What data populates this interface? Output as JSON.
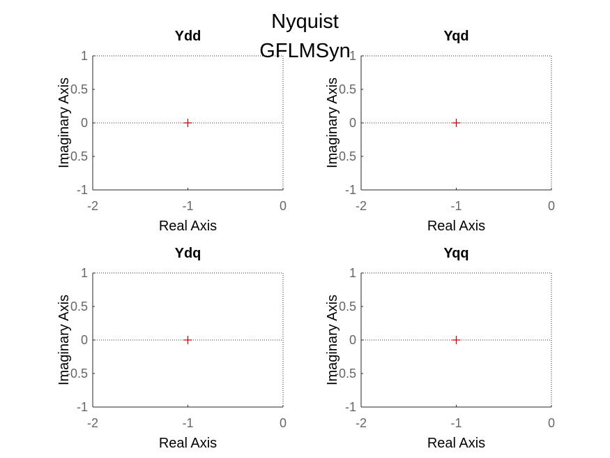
{
  "figure": {
    "suptitle_line1": "Nyquist",
    "suptitle_line2": "GFLMSyn"
  },
  "colors": {
    "tick_text": "#666666",
    "axis_box": "#262626",
    "zero_line": "#333333",
    "marker": "#cc0000"
  },
  "chart_data": [
    {
      "type": "scatter",
      "title": "Ydd",
      "xlabel": "Real Axis",
      "ylabel": "Imaginary Axis",
      "xlim": [
        -2,
        0
      ],
      "ylim": [
        -1,
        1
      ],
      "xticks": [
        "-2",
        "-1",
        "0"
      ],
      "yticks": [
        "-1",
        "-0.5",
        "0",
        "0.5",
        "1"
      ],
      "critical_point": {
        "x": -1,
        "y": 0
      },
      "zero_line": true,
      "grid": false
    },
    {
      "type": "scatter",
      "title": "Yqd",
      "xlabel": "Real Axis",
      "ylabel": "Imaginary Axis",
      "xlim": [
        -2,
        0
      ],
      "ylim": [
        -1,
        1
      ],
      "xticks": [
        "-2",
        "-1",
        "0"
      ],
      "yticks": [
        "-1",
        "-0.5",
        "0",
        "0.5",
        "1"
      ],
      "critical_point": {
        "x": -1,
        "y": 0
      },
      "zero_line": true,
      "grid": false
    },
    {
      "type": "scatter",
      "title": "Ydq",
      "xlabel": "Real Axis",
      "ylabel": "Imaginary Axis",
      "xlim": [
        -2,
        0
      ],
      "ylim": [
        -1,
        1
      ],
      "xticks": [
        "-2",
        "-1",
        "0"
      ],
      "yticks": [
        "-1",
        "-0.5",
        "0",
        "0.5",
        "1"
      ],
      "critical_point": {
        "x": -1,
        "y": 0
      },
      "zero_line": true,
      "grid": false
    },
    {
      "type": "scatter",
      "title": "Yqq",
      "xlabel": "Real Axis",
      "ylabel": "Imaginary Axis",
      "xlim": [
        -2,
        0
      ],
      "ylim": [
        -1,
        1
      ],
      "xticks": [
        "-2",
        "-1",
        "0"
      ],
      "yticks": [
        "-1",
        "-0.5",
        "0",
        "0.5",
        "1"
      ],
      "critical_point": {
        "x": -1,
        "y": 0
      },
      "zero_line": true,
      "grid": false
    }
  ]
}
